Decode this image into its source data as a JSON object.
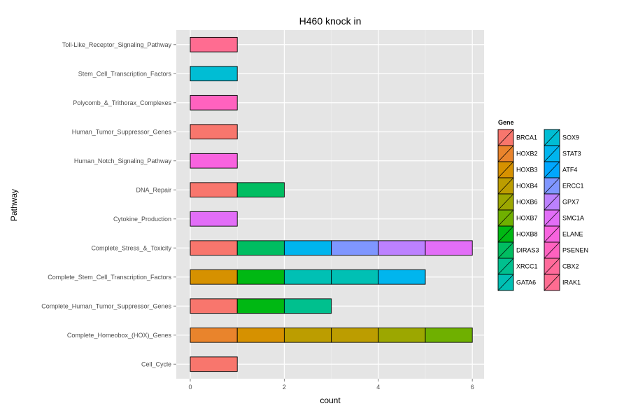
{
  "chart_data": {
    "type": "bar",
    "orientation": "horizontal",
    "stacked": true,
    "title": "H460 knock in",
    "xlabel": "count",
    "ylabel": "Pathway",
    "xlim": [
      0,
      6.3
    ],
    "xticks": [
      "0",
      "2",
      "4",
      "6"
    ],
    "grid": true,
    "legend_title": "Gene",
    "legend_position": "right",
    "colors": {
      "BRCA1": "#F8766D",
      "HOXB2": "#E9842C",
      "HOXB3": "#D69100",
      "HOXB4": "#BC9D00",
      "HOXB6": "#9CA700",
      "HOXB7": "#6FB000",
      "HOXB8": "#00B813",
      "DIRAS3": "#00BD61",
      "XRCC1": "#00C08E",
      "GATA6": "#00C0B4",
      "SOX9": "#00BDD4",
      "STAT3": "#00B5EE",
      "ATF4": "#00A7FF",
      "ERCC1": "#7F96FF",
      "GPX7": "#BC81FF",
      "SMC1A": "#E26EF7",
      "ELANE": "#F863DF",
      "PSENEN": "#FF62BF",
      "CBX2": "#FF6A9A",
      "IRAK1": "#FF6C91"
    },
    "categories": [
      "Toll-Like_Receptor_Signaling_Pathway",
      "Stem_Cell_Transcription_Factors",
      "Polycomb_&_Trithorax_Complexes",
      "Human_Tumor_Suppressor_Genes",
      "Human_Notch_Signaling_Pathway",
      "DNA_Repair",
      "Cytokine_Production",
      "Complete_Stress_&_Toxicity",
      "Complete_Stem_Cell_Transcription_Factors",
      "Complete_Human_Tumor_Suppressor_Genes",
      "Complete_Homeobox_(HOX)_Genes",
      "Cell_Cycle"
    ],
    "bars": [
      [
        "IRAK1"
      ],
      [
        "SOX9"
      ],
      [
        "PSENEN"
      ],
      [
        "BRCA1"
      ],
      [
        "ELANE"
      ],
      [
        "BRCA1",
        "DIRAS3"
      ],
      [
        "SMC1A"
      ],
      [
        "BRCA1",
        "DIRAS3",
        "STAT3",
        "ERCC1",
        "GPX7",
        "SMC1A"
      ],
      [
        "HOXB3",
        "HOXB8",
        "GATA6",
        "GATA6",
        "STAT3"
      ],
      [
        "BRCA1",
        "HOXB8",
        "XRCC1"
      ],
      [
        "HOXB2",
        "HOXB3",
        "HOXB4",
        "HOXB4",
        "HOXB6",
        "HOXB7"
      ],
      [
        "BRCA1"
      ]
    ],
    "legend_columns": [
      [
        "BRCA1",
        "HOXB2",
        "HOXB3",
        "HOXB4",
        "HOXB6",
        "HOXB7",
        "HOXB8",
        "DIRAS3",
        "XRCC1",
        "GATA6"
      ],
      [
        "SOX9",
        "STAT3",
        "ATF4",
        "ERCC1",
        "GPX7",
        "SMC1A",
        "ELANE",
        "PSENEN",
        "CBX2",
        "IRAK1"
      ]
    ]
  }
}
